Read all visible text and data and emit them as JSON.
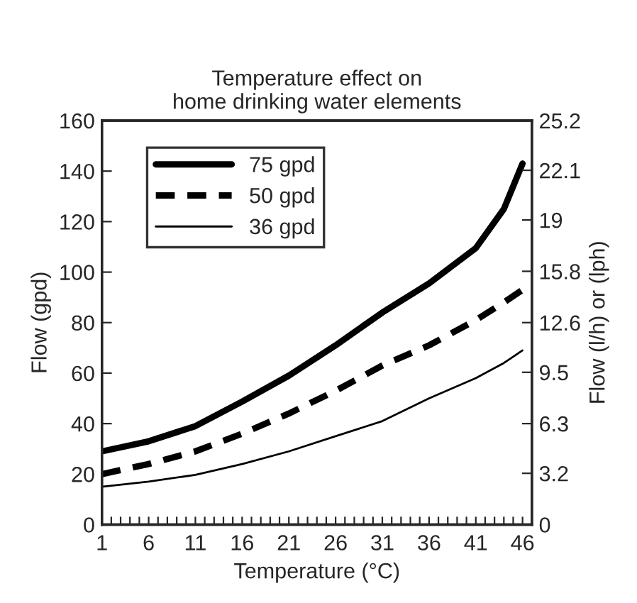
{
  "chart_data": {
    "type": "line",
    "title": "Temperature effect on\nhome drinking water elements",
    "xlabel": "Temperature (°C)",
    "ylabel": "Flow (gpd)",
    "y2label": "Flow (l/h) or (lph)",
    "x": [
      1,
      6,
      11,
      16,
      21,
      26,
      31,
      36,
      41,
      44,
      46
    ],
    "series": [
      {
        "name": "75 gpd",
        "color": "#000000",
        "line_style": "solid",
        "values": [
          29,
          33,
          39,
          48.7,
          59,
          71,
          84,
          95.5,
          109.5,
          125,
          143
        ]
      },
      {
        "name": "50 gpd",
        "color": "#000000",
        "line_style": "dashed",
        "values": [
          20,
          24,
          29,
          36,
          44,
          53,
          63,
          71,
          81,
          88,
          93
        ]
      },
      {
        "name": "36 gpd",
        "color": "#000000",
        "line_style": "solid",
        "values": [
          15,
          17,
          19.7,
          24,
          29,
          35,
          41,
          50,
          58,
          64,
          69
        ]
      }
    ],
    "xlim": [
      1,
      47
    ],
    "xticks": [
      1,
      {
        "value": 2,
        "label": null
      },
      {
        "value": 3,
        "label": null
      },
      {
        "value": 4,
        "label": null
      },
      {
        "value": 5,
        "label": null
      },
      6,
      {
        "value": 7,
        "label": null
      },
      {
        "value": 8,
        "label": null
      },
      {
        "value": 9,
        "label": null
      },
      {
        "value": 10,
        "label": null
      },
      11,
      {
        "value": 12,
        "label": null
      },
      {
        "value": 13,
        "label": null
      },
      {
        "value": 14,
        "label": null
      },
      {
        "value": 15,
        "label": null
      },
      16,
      {
        "value": 17,
        "label": null
      },
      {
        "value": 18,
        "label": null
      },
      {
        "value": 19,
        "label": null
      },
      {
        "value": 20,
        "label": null
      },
      21,
      {
        "value": 22,
        "label": null
      },
      {
        "value": 23,
        "label": null
      },
      {
        "value": 24,
        "label": null
      },
      {
        "value": 25,
        "label": null
      },
      26,
      {
        "value": 27,
        "label": null
      },
      {
        "value": 28,
        "label": null
      },
      {
        "value": 29,
        "label": null
      },
      {
        "value": 30,
        "label": null
      },
      31,
      {
        "value": 32,
        "label": null
      },
      {
        "value": 33,
        "label": null
      },
      {
        "value": 34,
        "label": null
      },
      {
        "value": 35,
        "label": null
      },
      36,
      {
        "value": 37,
        "label": null
      },
      {
        "value": 38,
        "label": null
      },
      {
        "value": 39,
        "label": null
      },
      {
        "value": 40,
        "label": null
      },
      41,
      {
        "value": 42,
        "label": null
      },
      {
        "value": 43,
        "label": null
      },
      {
        "value": 44,
        "label": null
      },
      {
        "value": 45,
        "label": null
      },
      46
    ],
    "ylim": [
      0,
      160
    ],
    "yticks": [
      0,
      20,
      40,
      60,
      80,
      100,
      120,
      140,
      160
    ],
    "y2lim": [
      0,
      25.2
    ],
    "y2ticks": [
      0,
      3.2,
      6.3,
      9.5,
      12.6,
      15.8,
      19,
      22.1,
      25.2
    ],
    "grid": false,
    "legend": "top left",
    "marker": "none"
  }
}
